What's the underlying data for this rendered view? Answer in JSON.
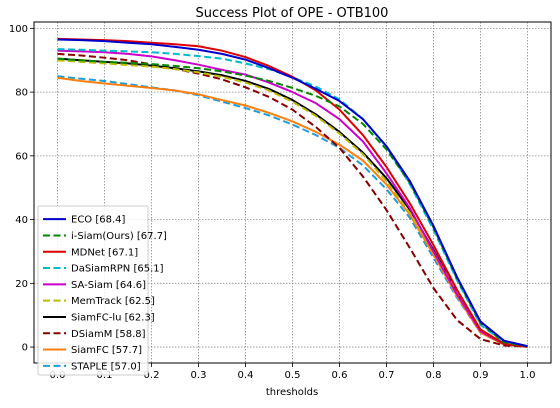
{
  "chart_data": {
    "type": "line",
    "title": "Success Plot of OPE - OTB100",
    "xlabel": "thresholds",
    "ylabel": "",
    "xlim": [
      -0.05,
      1.05
    ],
    "ylim": [
      -5,
      102
    ],
    "x_ticks": [
      "0.0",
      "0.1",
      "0.2",
      "0.3",
      "0.4",
      "0.5",
      "0.6",
      "0.7",
      "0.8",
      "0.9",
      "1.0"
    ],
    "y_ticks": [
      "0",
      "20",
      "40",
      "60",
      "80",
      "100"
    ],
    "grid": true,
    "legend_position": "lower-left",
    "x": [
      0,
      0.05,
      0.1,
      0.15,
      0.2,
      0.25,
      0.3,
      0.35,
      0.4,
      0.45,
      0.5,
      0.55,
      0.6,
      0.65,
      0.7,
      0.75,
      0.8,
      0.85,
      0.9,
      0.95,
      1.0
    ],
    "series": [
      {
        "name": "ECO [68.4]",
        "color": "#0000cc",
        "dash": "solid",
        "values": [
          96.5,
          96.3,
          96.0,
          95.5,
          95.0,
          94.2,
          93.3,
          92.0,
          90.2,
          87.5,
          84.5,
          81.0,
          77.2,
          71.5,
          63.0,
          52.0,
          38.0,
          22.0,
          8.0,
          2.0,
          0.3
        ]
      },
      {
        "name": "i-Siam(Ours) [67.7]",
        "color": "#008800",
        "dash": "dashed",
        "values": [
          90.5,
          90.0,
          89.5,
          89.2,
          88.8,
          88.2,
          87.5,
          86.5,
          85.2,
          83.5,
          81.3,
          78.8,
          75.5,
          70.0,
          62.0,
          51.5,
          37.5,
          21.5,
          7.5,
          1.5,
          0.2
        ]
      },
      {
        "name": "MDNet [67.1]",
        "color": "#dd0000",
        "dash": "solid",
        "values": [
          96.7,
          96.5,
          96.3,
          96.0,
          95.5,
          95.0,
          94.4,
          93.0,
          91.0,
          88.2,
          84.8,
          80.5,
          74.5,
          66.5,
          56.5,
          45.0,
          32.0,
          18.0,
          5.5,
          1.0,
          0.1
        ]
      },
      {
        "name": "DaSiamRPN [65.1]",
        "color": "#00bbcc",
        "dash": "dashed",
        "values": [
          93.5,
          93.3,
          93.0,
          92.8,
          92.5,
          92.0,
          91.3,
          90.5,
          89.0,
          87.2,
          84.7,
          81.7,
          77.7,
          71.5,
          62.8,
          51.0,
          36.8,
          21.0,
          7.0,
          1.5,
          0.2
        ]
      },
      {
        "name": "SA-Siam [64.6]",
        "color": "#cc00cc",
        "dash": "solid",
        "values": [
          93.0,
          92.8,
          92.5,
          92.0,
          91.2,
          90.0,
          88.6,
          87.0,
          85.5,
          83.0,
          80.0,
          76.5,
          71.5,
          64.5,
          54.5,
          43.5,
          30.0,
          16.5,
          5.0,
          1.0,
          0.1
        ]
      },
      {
        "name": "MemTrack [62.5]",
        "color": "#bbbb00",
        "dash": "dashed",
        "values": [
          90.0,
          89.5,
          89.0,
          88.5,
          88.0,
          87.2,
          86.2,
          84.8,
          83.0,
          80.5,
          77.0,
          72.5,
          67.0,
          60.5,
          52.0,
          42.0,
          30.0,
          17.0,
          5.5,
          1.0,
          0.1
        ]
      },
      {
        "name": "SiamFC-lu [62.3]",
        "color": "#000000",
        "dash": "solid",
        "values": [
          90.5,
          90.0,
          89.5,
          89.0,
          88.3,
          87.5,
          86.5,
          85.3,
          83.5,
          81.0,
          77.5,
          73.0,
          67.5,
          61.0,
          53.0,
          43.0,
          30.5,
          17.0,
          5.0,
          1.0,
          0.1
        ]
      },
      {
        "name": "DSiamM [58.8]",
        "color": "#880000",
        "dash": "dashed",
        "values": [
          92.0,
          91.5,
          90.8,
          90.0,
          88.7,
          87.3,
          85.8,
          84.0,
          81.5,
          78.5,
          74.5,
          69.0,
          62.5,
          53.5,
          43.0,
          31.0,
          18.5,
          8.5,
          2.5,
          0.5,
          0.1
        ]
      },
      {
        "name": "SiamFC [57.7]",
        "color": "#ff7f0e",
        "dash": "solid",
        "values": [
          84.5,
          83.5,
          82.7,
          82.0,
          81.3,
          80.5,
          79.3,
          77.5,
          75.8,
          73.5,
          70.8,
          67.5,
          63.5,
          58.5,
          51.0,
          41.5,
          29.0,
          16.0,
          4.5,
          0.8,
          0.1
        ]
      },
      {
        "name": "STAPLE [57.0]",
        "color": "#1f9ed8",
        "dash": "dashed",
        "values": [
          85.0,
          84.2,
          83.5,
          82.5,
          81.5,
          80.5,
          79.0,
          77.0,
          75.0,
          72.7,
          69.8,
          66.5,
          62.5,
          57.0,
          49.5,
          40.5,
          28.0,
          15.5,
          4.5,
          0.8,
          0.1
        ]
      }
    ]
  }
}
